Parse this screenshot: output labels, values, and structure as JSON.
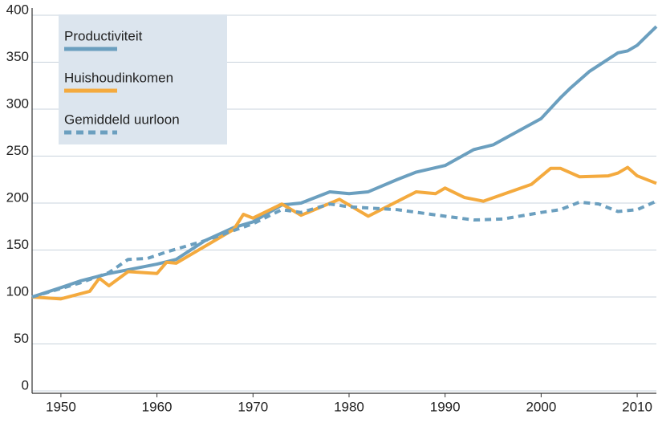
{
  "chart_data": {
    "type": "line",
    "xlim": [
      1947,
      2012
    ],
    "xticks": [
      1950,
      1960,
      1970,
      1980,
      1990,
      2000,
      2010
    ],
    "ylim": [
      0,
      400
    ],
    "yticks": [
      0,
      50,
      100,
      150,
      200,
      250,
      300,
      350,
      400
    ],
    "grid": true,
    "legend": "top-left",
    "series": [
      {
        "name": "Productiviteit",
        "color": "#6b9fbf",
        "style": "solid",
        "x": [
          1947,
          1950,
          1952,
          1955,
          1957,
          1960,
          1962,
          1965,
          1968,
          1970,
          1973,
          1975,
          1978,
          1980,
          1982,
          1985,
          1987,
          1990,
          1993,
          1995,
          2000,
          2002,
          2003,
          2005,
          2008,
          2009,
          2010,
          2011,
          2012
        ],
        "values": [
          100,
          110,
          117,
          125,
          129,
          135,
          140,
          160,
          174,
          180,
          198,
          200,
          212,
          210,
          212,
          225,
          233,
          240,
          257,
          262,
          290,
          312,
          322,
          340,
          360,
          362,
          368,
          378,
          388
        ]
      },
      {
        "name": "Huishoudinkomen",
        "color": "#f4aa3e",
        "style": "solid",
        "x": [
          1947,
          1950,
          1953,
          1954,
          1955,
          1957,
          1960,
          1961,
          1962,
          1968,
          1969,
          1970,
          1973,
          1975,
          1979,
          1982,
          1987,
          1989,
          1990,
          1992,
          1994,
          1999,
          2001,
          2002,
          2004,
          2007,
          2008,
          2009,
          2010,
          2012
        ],
        "values": [
          100,
          98,
          106,
          120,
          112,
          127,
          125,
          137,
          136,
          172,
          188,
          184,
          199,
          187,
          204,
          186,
          212,
          210,
          216,
          206,
          202,
          220,
          237,
          237,
          228,
          229,
          232,
          238,
          229,
          221
        ]
      },
      {
        "name": "Gemiddeld uurloon",
        "color": "#6b9fbf",
        "style": "dashed",
        "x": [
          1947,
          1952,
          1955,
          1957,
          1959,
          1961,
          1965,
          1970,
          1973,
          1975,
          1978,
          1980,
          1985,
          1990,
          1993,
          1996,
          2000,
          2002,
          2004,
          2006,
          2008,
          2010,
          2012
        ],
        "values": [
          100,
          115,
          126,
          140,
          141,
          148,
          160,
          178,
          193,
          190,
          199,
          196,
          193,
          186,
          182,
          183,
          190,
          193,
          201,
          199,
          191,
          193,
          202
        ]
      }
    ]
  }
}
